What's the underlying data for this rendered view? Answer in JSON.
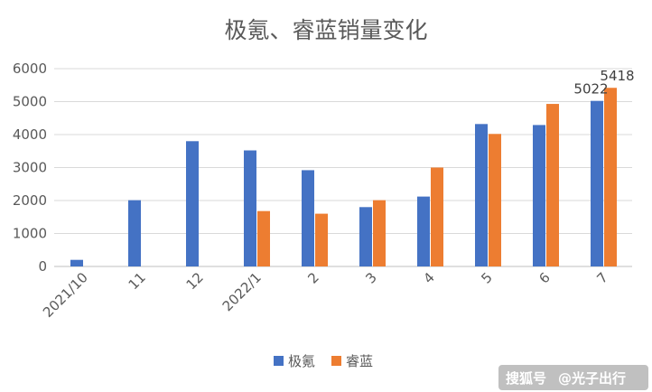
{
  "chart_data": {
    "type": "bar",
    "title": "极氪、睿蓝销量变化",
    "categories": [
      "2021/10",
      "11",
      "12",
      "2022/1",
      "2",
      "3",
      "4",
      "5",
      "6",
      "7"
    ],
    "series": [
      {
        "name": "极氪",
        "color": "#4472C4",
        "values": [
          200,
          2010,
          3800,
          3520,
          2920,
          1800,
          2120,
          4320,
          4290,
          5022
        ]
      },
      {
        "name": "睿蓝",
        "color": "#ED7D31",
        "values": [
          null,
          null,
          null,
          1680,
          1600,
          2010,
          3000,
          4020,
          4930,
          5418
        ]
      }
    ],
    "data_labels": [
      {
        "series": 0,
        "index": 9,
        "text": "5022"
      },
      {
        "series": 1,
        "index": 9,
        "text": "5418"
      }
    ],
    "ylim": [
      0,
      6000
    ],
    "yticks": [
      0,
      1000,
      2000,
      3000,
      4000,
      5000,
      6000
    ],
    "grid": true,
    "legend_position": "bottom"
  },
  "watermark": {
    "logo": "搜狐号",
    "text": "@光子出行"
  }
}
